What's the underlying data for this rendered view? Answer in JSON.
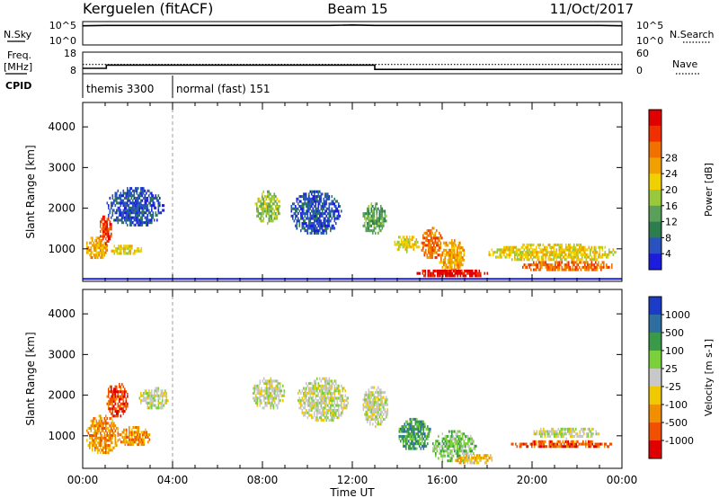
{
  "header": {
    "site": "Kerguelen (fitACF)",
    "beam": "Beam 15",
    "date": "11/Oct/2017"
  },
  "chart_data": [
    {
      "type": "line",
      "name": "N.Sky / N.Search",
      "left_label": "N.Sky",
      "right_label": "N.Search",
      "left_ticks": [
        "10^5",
        "10^0"
      ],
      "right_ticks": [
        "10^5",
        "10^0"
      ],
      "x": [
        0,
        1,
        2,
        3,
        4,
        5,
        6,
        7,
        8,
        9,
        10,
        11,
        12,
        13,
        14,
        15,
        16,
        17,
        18,
        19,
        20,
        21,
        22,
        23,
        24
      ],
      "series": [
        {
          "values": [
            4.5,
            4.6,
            4.6,
            4.6,
            4.6,
            4.6,
            4.6,
            4.6,
            4.6,
            4.6,
            4.6,
            4.6,
            4.7,
            4.6,
            4.6,
            4.6,
            4.6,
            4.6,
            4.6,
            4.6,
            4.6,
            4.6,
            4.6,
            4.6,
            4.5
          ],
          "style": "solid"
        }
      ],
      "ylim": [
        0,
        5.5
      ]
    },
    {
      "type": "line",
      "name": "Freq / Nave",
      "left_label": "Freq.",
      "left_unit": "[MHz]",
      "right_label": "Nave",
      "left_ticks": [
        "18",
        "8"
      ],
      "right_ticks": [
        "60",
        "0"
      ],
      "segments": [
        {
          "x0": 0.0,
          "x1": 1.05,
          "freq": 10.5
        },
        {
          "x0": 1.05,
          "x1": 13.0,
          "freq": 12.0
        },
        {
          "x0": 13.0,
          "x1": 24.0,
          "freq": 10.0
        }
      ],
      "nave_level": 12.3,
      "ylim": [
        8,
        18
      ]
    },
    {
      "type": "table",
      "name": "CPID",
      "label": "CPID",
      "segments": [
        {
          "x0": 0.0,
          "x1": 4.0,
          "text": "themis 3300"
        },
        {
          "x0": 4.0,
          "x1": 24.0,
          "text": "normal (fast) 151"
        }
      ]
    },
    {
      "type": "heatmap",
      "name": "Power",
      "ylabel": "Slant Range [km]",
      "yticks": [
        1000,
        2000,
        3000,
        4000
      ],
      "ylim": [
        200,
        4600
      ],
      "xlim": [
        0,
        24
      ],
      "colorbar": {
        "label": "Power [dB]",
        "ticks": [
          "4",
          "8",
          "12",
          "16",
          "20",
          "24",
          "28"
        ],
        "colors": [
          "#1c1cdc",
          "#2a52be",
          "#2e7d4f",
          "#5aa05a",
          "#9ac83c",
          "#f0d000",
          "#f0a000",
          "#f07000",
          "#f03000",
          "#e00000"
        ]
      },
      "echo_regions": [
        {
          "x0": 0.1,
          "x1": 1.1,
          "y0": 700,
          "y1": 1300,
          "level": 6
        },
        {
          "x0": 0.7,
          "x1": 1.3,
          "y0": 1100,
          "y1": 1800,
          "level": 8
        },
        {
          "x0": 1.2,
          "x1": 2.6,
          "y0": 800,
          "y1": 1100,
          "level": 5
        },
        {
          "x0": 1.0,
          "x1": 3.6,
          "y0": 1500,
          "y1": 2500,
          "level": 1
        },
        {
          "x0": 7.6,
          "x1": 8.8,
          "y0": 1600,
          "y1": 2400,
          "level": 4
        },
        {
          "x0": 9.2,
          "x1": 11.5,
          "y0": 1300,
          "y1": 2400,
          "level": 1
        },
        {
          "x0": 12.4,
          "x1": 13.5,
          "y0": 1300,
          "y1": 2100,
          "level": 3
        },
        {
          "x0": 13.8,
          "x1": 15.0,
          "y0": 900,
          "y1": 1300,
          "level": 5
        },
        {
          "x0": 15.0,
          "x1": 16.0,
          "y0": 700,
          "y1": 1500,
          "level": 7
        },
        {
          "x0": 15.8,
          "x1": 17.0,
          "y0": 400,
          "y1": 1200,
          "level": 6
        },
        {
          "x0": 14.8,
          "x1": 18.0,
          "y0": 250,
          "y1": 480,
          "level": 9
        },
        {
          "x0": 18.0,
          "x1": 23.8,
          "y0": 650,
          "y1": 1100,
          "level": 5
        },
        {
          "x0": 19.5,
          "x1": 23.6,
          "y0": 400,
          "y1": 700,
          "level": 7
        }
      ]
    },
    {
      "type": "heatmap",
      "name": "Velocity",
      "ylabel": "Slant Range [km]",
      "xlabel": "Time UT",
      "yticks": [
        1000,
        2000,
        3000,
        4000
      ],
      "ylim": [
        200,
        4600
      ],
      "xlim": [
        0,
        24
      ],
      "xtick_labels": [
        "00:00",
        "04:00",
        "08:00",
        "12:00",
        "16:00",
        "20:00",
        "00:00"
      ],
      "xtick_values": [
        0,
        4,
        8,
        12,
        16,
        20,
        24
      ],
      "colorbar": {
        "label": "Velocity [m s-1]",
        "ticks": [
          "1000",
          "500",
          "100",
          "25",
          "-25",
          "-100",
          "-500",
          "-1000"
        ],
        "colors": [
          "#1c3cc8",
          "#2e6ea0",
          "#3a9a4a",
          "#7ad03a",
          "#c8c8c8",
          "#f0c800",
          "#f09000",
          "#f05000",
          "#e00000"
        ]
      },
      "echo_regions": [
        {
          "x0": 0.1,
          "x1": 1.6,
          "y0": 500,
          "y1": 1500,
          "level": 6
        },
        {
          "x0": 1.0,
          "x1": 2.0,
          "y0": 1400,
          "y1": 2300,
          "level": 7
        },
        {
          "x0": 1.5,
          "x1": 3.0,
          "y0": 700,
          "y1": 1200,
          "level": 6
        },
        {
          "x0": 2.5,
          "x1": 3.8,
          "y0": 1600,
          "y1": 2200,
          "level": 4
        },
        {
          "x0": 7.5,
          "x1": 9.0,
          "y0": 1600,
          "y1": 2400,
          "level": 4
        },
        {
          "x0": 9.5,
          "x1": 11.8,
          "y0": 1300,
          "y1": 2400,
          "level": 4
        },
        {
          "x0": 12.4,
          "x1": 13.6,
          "y0": 1200,
          "y1": 2200,
          "level": 4
        },
        {
          "x0": 14.0,
          "x1": 15.5,
          "y0": 600,
          "y1": 1400,
          "level": 2
        },
        {
          "x0": 15.5,
          "x1": 17.5,
          "y0": 300,
          "y1": 1100,
          "level": 3
        },
        {
          "x0": 16.5,
          "x1": 18.3,
          "y0": 250,
          "y1": 550,
          "level": 5
        },
        {
          "x0": 19.0,
          "x1": 23.6,
          "y0": 650,
          "y1": 850,
          "level": 7
        },
        {
          "x0": 20.0,
          "x1": 23.0,
          "y0": 900,
          "y1": 1200,
          "level": 4
        }
      ]
    }
  ]
}
